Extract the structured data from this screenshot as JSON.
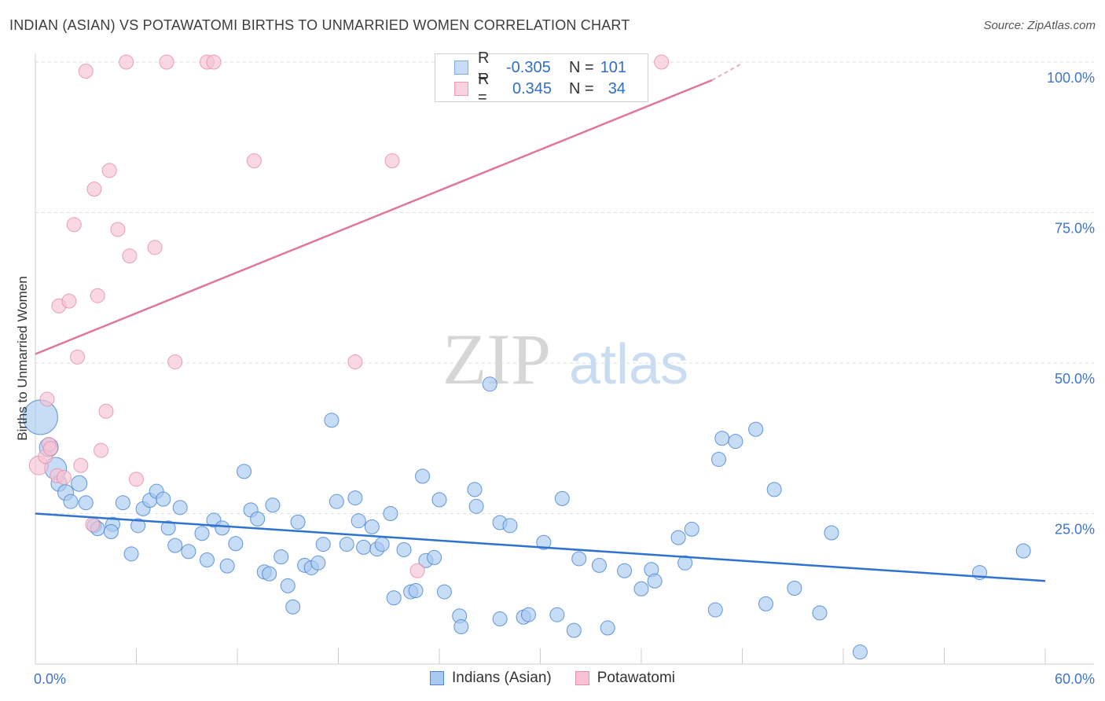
{
  "title": "INDIAN (ASIAN) VS POTAWATOMI BIRTHS TO UNMARRIED WOMEN CORRELATION CHART",
  "source": "Source: ZipAtlas.com",
  "watermark": {
    "zip": "ZIP",
    "atlas": "atlas"
  },
  "legend": {
    "r_label": "R =",
    "n_label": "N =",
    "rows": [
      {
        "r": "-0.305",
        "n": "101",
        "color": "#7aaee8",
        "fill": "#c5dbf6"
      },
      {
        "r": "0.345",
        "n": "34",
        "color": "#ee9ab4",
        "fill": "#fad1de"
      }
    ]
  },
  "chart_data": {
    "type": "scatter",
    "ylabel": "Births to Unmarried Women",
    "xlim": [
      0,
      60
    ],
    "ylim": [
      0,
      102
    ],
    "x_tick_labels": [
      "0.0%",
      "60.0%"
    ],
    "y_ticks": [
      25,
      50,
      75,
      100
    ],
    "y_tick_labels": [
      "25.0%",
      "50.0%",
      "75.0%",
      "100.0%"
    ],
    "series": [
      {
        "name": "Indians (Asian)",
        "color": "#4a86d4",
        "fill": "#a9c9f0",
        "trend": {
          "x0": 0,
          "y0": 25.0,
          "x1": 60,
          "y1": 13.8
        },
        "points": [
          [
            0.3,
            41.0,
            22
          ],
          [
            0.8,
            36.0,
            12
          ],
          [
            1.2,
            32.5,
            14
          ],
          [
            1.4,
            30.0,
            10
          ],
          [
            1.8,
            28.5,
            10
          ],
          [
            2.1,
            27.0,
            9
          ],
          [
            2.6,
            30.0,
            10
          ],
          [
            3.0,
            26.8,
            9
          ],
          [
            3.5,
            23.0,
            9
          ],
          [
            3.7,
            22.5,
            9
          ],
          [
            4.6,
            23.2,
            9
          ],
          [
            4.5,
            22.0,
            9
          ],
          [
            5.2,
            26.8,
            9
          ],
          [
            5.7,
            18.3,
            9
          ],
          [
            6.1,
            23.0,
            9
          ],
          [
            6.4,
            25.8,
            9
          ],
          [
            6.8,
            27.2,
            9
          ],
          [
            7.2,
            28.7,
            9
          ],
          [
            7.6,
            27.4,
            9
          ],
          [
            7.9,
            22.6,
            9
          ],
          [
            8.3,
            19.7,
            9
          ],
          [
            8.6,
            26.0,
            9
          ],
          [
            9.1,
            18.7,
            9
          ],
          [
            9.9,
            21.7,
            9
          ],
          [
            10.2,
            17.3,
            9
          ],
          [
            10.6,
            23.9,
            9
          ],
          [
            11.1,
            22.6,
            9
          ],
          [
            11.4,
            16.3,
            9
          ],
          [
            11.9,
            20.0,
            9
          ],
          [
            12.4,
            32.0,
            9
          ],
          [
            12.8,
            25.6,
            9
          ],
          [
            13.2,
            24.1,
            9
          ],
          [
            13.6,
            15.3,
            9
          ],
          [
            13.9,
            15.0,
            9
          ],
          [
            14.1,
            26.4,
            9
          ],
          [
            14.6,
            17.8,
            9
          ],
          [
            15.0,
            13.0,
            9
          ],
          [
            15.3,
            9.5,
            9
          ],
          [
            15.6,
            23.6,
            9
          ],
          [
            16.0,
            16.4,
            9
          ],
          [
            16.4,
            16.0,
            9
          ],
          [
            16.8,
            16.8,
            9
          ],
          [
            17.1,
            19.9,
            9
          ],
          [
            17.6,
            40.5,
            9
          ],
          [
            17.9,
            27.0,
            9
          ],
          [
            18.5,
            19.9,
            9
          ],
          [
            19.0,
            27.6,
            9
          ],
          [
            19.2,
            23.8,
            9
          ],
          [
            19.5,
            19.4,
            9
          ],
          [
            20.0,
            22.8,
            9
          ],
          [
            20.3,
            19.1,
            9
          ],
          [
            20.6,
            19.9,
            9
          ],
          [
            21.1,
            25.0,
            9
          ],
          [
            21.3,
            11.0,
            9
          ],
          [
            21.9,
            19.0,
            9
          ],
          [
            22.3,
            12.0,
            9
          ],
          [
            22.6,
            12.2,
            9
          ],
          [
            23.0,
            31.2,
            9
          ],
          [
            23.2,
            17.2,
            9
          ],
          [
            23.7,
            17.7,
            9
          ],
          [
            24.0,
            27.3,
            9
          ],
          [
            24.3,
            12.0,
            9
          ],
          [
            25.2,
            8.0,
            9
          ],
          [
            25.3,
            6.2,
            9
          ],
          [
            26.1,
            29.0,
            9
          ],
          [
            26.2,
            26.2,
            9
          ],
          [
            27.0,
            46.5,
            9
          ],
          [
            27.6,
            7.5,
            9
          ],
          [
            27.6,
            23.5,
            9
          ],
          [
            28.2,
            23.0,
            9
          ],
          [
            29.0,
            7.8,
            9
          ],
          [
            29.3,
            8.2,
            9
          ],
          [
            30.2,
            20.2,
            9
          ],
          [
            31.0,
            8.2,
            9
          ],
          [
            31.3,
            27.5,
            9
          ],
          [
            32.0,
            5.6,
            9
          ],
          [
            32.3,
            17.5,
            9
          ],
          [
            33.5,
            16.4,
            9
          ],
          [
            34.0,
            6.0,
            9
          ],
          [
            35.0,
            15.5,
            9
          ],
          [
            36.0,
            12.5,
            9
          ],
          [
            36.6,
            15.7,
            9
          ],
          [
            36.8,
            13.8,
            9
          ],
          [
            38.2,
            21.0,
            9
          ],
          [
            38.6,
            16.8,
            9
          ],
          [
            39.0,
            22.4,
            9
          ],
          [
            40.4,
            9.0,
            9
          ],
          [
            40.6,
            34.0,
            9
          ],
          [
            40.8,
            37.5,
            9
          ],
          [
            41.6,
            37.0,
            9
          ],
          [
            42.8,
            39.0,
            9
          ],
          [
            43.4,
            10.0,
            9
          ],
          [
            43.9,
            29.0,
            9
          ],
          [
            45.1,
            12.6,
            9
          ],
          [
            46.6,
            8.5,
            9
          ],
          [
            47.3,
            21.8,
            9
          ],
          [
            49.0,
            2.0,
            9
          ],
          [
            56.1,
            15.2,
            9
          ],
          [
            58.7,
            18.8,
            9
          ]
        ]
      },
      {
        "name": "Potawatomi",
        "color": "#e58fab",
        "fill": "#f7c3d4",
        "trend": {
          "x0": 0,
          "y0": 51.5,
          "x1": 40.2,
          "y1": 97.0,
          "x2": 42.0,
          "y2": 99.8
        },
        "points": [
          [
            0.2,
            33.0,
            12
          ],
          [
            0.6,
            34.5,
            9
          ],
          [
            0.8,
            36.5,
            9
          ],
          [
            0.9,
            35.8,
            9
          ],
          [
            0.7,
            44.0,
            9
          ],
          [
            1.3,
            31.3,
            9
          ],
          [
            1.4,
            59.5,
            9
          ],
          [
            1.7,
            31.0,
            9
          ],
          [
            2.0,
            60.3,
            9
          ],
          [
            2.3,
            73.0,
            9
          ],
          [
            2.5,
            51.0,
            9
          ],
          [
            2.7,
            33.0,
            9
          ],
          [
            3.0,
            98.5,
            9
          ],
          [
            3.4,
            23.2,
            9
          ],
          [
            3.5,
            78.9,
            9
          ],
          [
            3.7,
            61.2,
            9
          ],
          [
            3.9,
            35.5,
            9
          ],
          [
            4.2,
            42.0,
            9
          ],
          [
            4.4,
            82.0,
            9
          ],
          [
            4.9,
            72.2,
            9
          ],
          [
            5.4,
            100.0,
            9
          ],
          [
            5.6,
            67.8,
            9
          ],
          [
            6.0,
            30.7,
            9
          ],
          [
            7.1,
            69.2,
            9
          ],
          [
            7.8,
            100.0,
            9
          ],
          [
            8.3,
            50.2,
            9
          ],
          [
            10.2,
            100.0,
            9
          ],
          [
            10.6,
            100.0,
            9
          ],
          [
            13.0,
            83.6,
            9
          ],
          [
            19.0,
            50.2,
            9
          ],
          [
            21.2,
            83.6,
            9
          ],
          [
            22.7,
            15.5,
            9
          ],
          [
            37.2,
            100.0,
            9
          ]
        ]
      }
    ]
  }
}
